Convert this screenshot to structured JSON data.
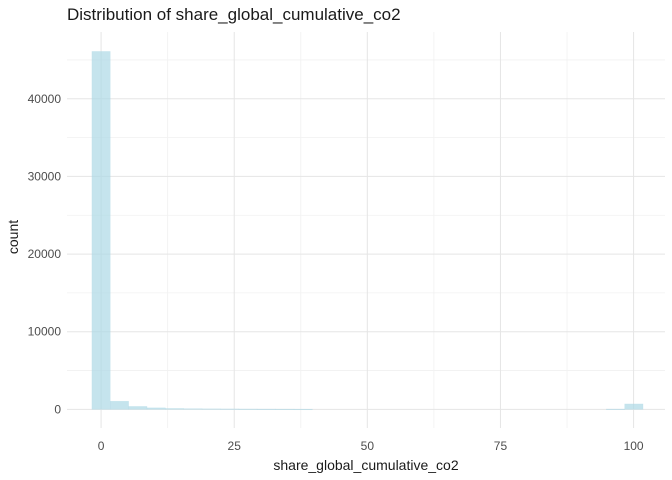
{
  "chart_data": {
    "type": "bar",
    "title": "Distribution of share_global_cumulative_co2",
    "xlabel": "share_global_cumulative_co2",
    "ylabel": "count",
    "x_ticks": [
      0,
      25,
      50,
      75,
      100
    ],
    "y_ticks": [
      0,
      10000,
      20000,
      30000,
      40000
    ],
    "xlim": [
      -6.4,
      105.9
    ],
    "ylim": [
      -2400,
      48600
    ],
    "grid": true,
    "bin_width": 3.45,
    "bar_color": "#add8e6",
    "bins": [
      {
        "center": 0.0,
        "count": 46100
      },
      {
        "center": 3.45,
        "count": 1050
      },
      {
        "center": 6.9,
        "count": 380
      },
      {
        "center": 10.35,
        "count": 200
      },
      {
        "center": 13.8,
        "count": 120
      },
      {
        "center": 17.25,
        "count": 90
      },
      {
        "center": 20.7,
        "count": 70
      },
      {
        "center": 24.15,
        "count": 60
      },
      {
        "center": 27.6,
        "count": 50
      },
      {
        "center": 31.05,
        "count": 40
      },
      {
        "center": 34.5,
        "count": 35
      },
      {
        "center": 37.95,
        "count": 25
      },
      {
        "center": 96.6,
        "count": 40
      },
      {
        "center": 100.05,
        "count": 700
      }
    ]
  }
}
